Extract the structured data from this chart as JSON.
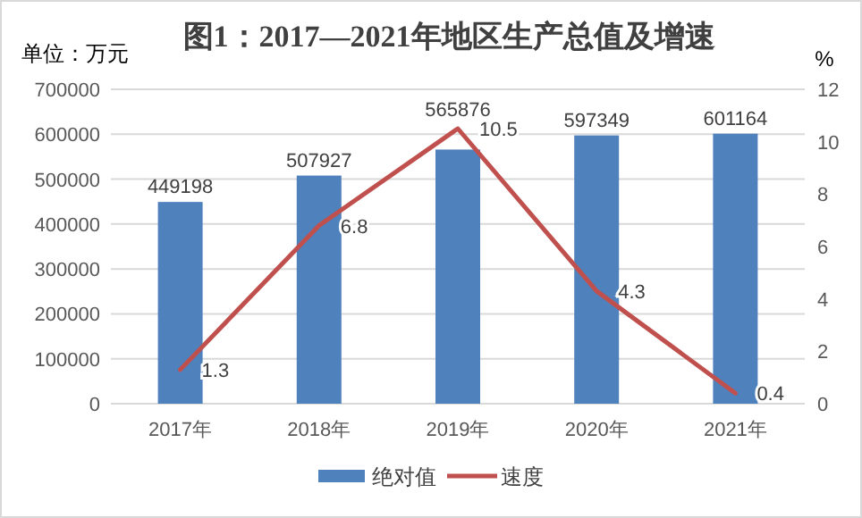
{
  "chart_data": {
    "type": "bar",
    "title": "图1：2017—2021年地区生产总值及增速",
    "ylabel": "单位：万元",
    "y2label": "%",
    "categories": [
      "2017年",
      "2018年",
      "2019年",
      "2020年",
      "2021年"
    ],
    "series": [
      {
        "name": "绝对值",
        "color": "#4f81bd",
        "values": [
          449198,
          507927,
          565876,
          597349,
          601164
        ]
      },
      {
        "name": "速度",
        "type": "line",
        "axis": "y2",
        "color": "#c0504d",
        "values": [
          1.3,
          6.8,
          10.5,
          4.3,
          0.4
        ]
      }
    ],
    "ylim": [
      0,
      700000
    ],
    "yticks": [
      0,
      100000,
      200000,
      300000,
      400000,
      500000,
      600000,
      700000
    ],
    "y2lim": [
      0,
      12
    ],
    "y2ticks": [
      0,
      2,
      4,
      6,
      8,
      10,
      12
    ],
    "grid": "y",
    "legend": "bottom",
    "data_labels": true
  }
}
